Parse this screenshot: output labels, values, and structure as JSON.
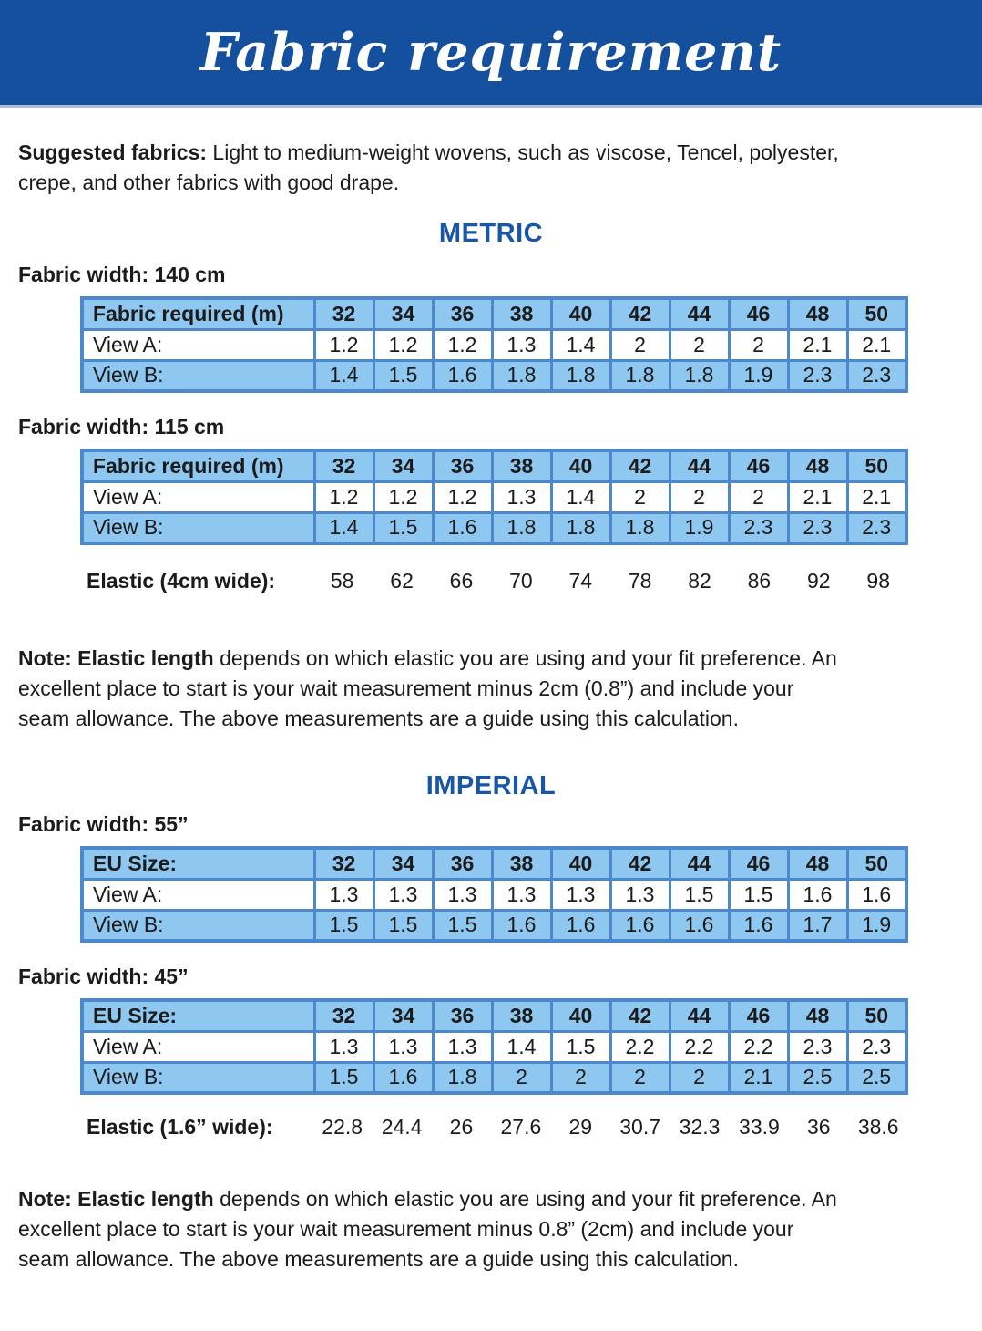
{
  "title": "Fabric requirement",
  "intro": {
    "lead": "Suggested fabrics:",
    "lines": [
      " Light to medium-weight wovens, such as viscose, Tencel, polyester,",
      "crepe, and other fabrics with good drape."
    ]
  },
  "metric": {
    "heading": "METRIC",
    "tables": [
      {
        "caption": "Fabric width: 140 cm",
        "header_label": "Fabric required (m)",
        "sizes": [
          "32",
          "34",
          "36",
          "38",
          "40",
          "42",
          "44",
          "46",
          "48",
          "50"
        ],
        "rows": [
          {
            "label": "View A:",
            "values": [
              "1.2",
              "1.2",
              "1.2",
              "1.3",
              "1.4",
              "2",
              "2",
              "2",
              "2.1",
              "2.1"
            ]
          },
          {
            "label": "View B:",
            "values": [
              "1.4",
              "1.5",
              "1.6",
              "1.8",
              "1.8",
              "1.8",
              "1.8",
              "1.9",
              "2.3",
              "2.3"
            ]
          }
        ]
      },
      {
        "caption": "Fabric width: 115 cm",
        "header_label": "Fabric required (m)",
        "sizes": [
          "32",
          "34",
          "36",
          "38",
          "40",
          "42",
          "44",
          "46",
          "48",
          "50"
        ],
        "rows": [
          {
            "label": "View A:",
            "values": [
              "1.2",
              "1.2",
              "1.2",
              "1.3",
              "1.4",
              "2",
              "2",
              "2",
              "2.1",
              "2.1"
            ]
          },
          {
            "label": "View B:",
            "values": [
              "1.4",
              "1.5",
              "1.6",
              "1.8",
              "1.8",
              "1.8",
              "1.9",
              "2.3",
              "2.3",
              "2.3"
            ]
          }
        ]
      }
    ],
    "elastic": {
      "label": "Elastic (4cm wide):",
      "values": [
        "58",
        "62",
        "66",
        "70",
        "74",
        "78",
        "82",
        "86",
        "92",
        "98"
      ]
    },
    "note": {
      "lead": "Note: Elastic length",
      "lines": [
        " depends on which elastic you are using and your fit preference. An",
        "excellent place to start is your wait measurement minus 2cm (0.8”) and include your",
        "seam allowance. The above measurements are a guide using this calculation."
      ]
    }
  },
  "imperial": {
    "heading": "IMPERIAL",
    "tables": [
      {
        "caption": "Fabric width: 55”",
        "header_label": "EU Size:",
        "sizes": [
          "32",
          "34",
          "36",
          "38",
          "40",
          "42",
          "44",
          "46",
          "48",
          "50"
        ],
        "rows": [
          {
            "label": "View A:",
            "values": [
              "1.3",
              "1.3",
              "1.3",
              "1.3",
              "1.3",
              "1.3",
              "1.5",
              "1.5",
              "1.6",
              "1.6"
            ]
          },
          {
            "label": "View B:",
            "values": [
              "1.5",
              "1.5",
              "1.5",
              "1.6",
              "1.6",
              "1.6",
              "1.6",
              "1.6",
              "1.7",
              "1.9"
            ]
          }
        ]
      },
      {
        "caption": "Fabric width: 45”",
        "header_label": "EU Size:",
        "sizes": [
          "32",
          "34",
          "36",
          "38",
          "40",
          "42",
          "44",
          "46",
          "48",
          "50"
        ],
        "rows": [
          {
            "label": "View A:",
            "values": [
              "1.3",
              "1.3",
              "1.3",
              "1.4",
              "1.5",
              "2.2",
              "2.2",
              "2.2",
              "2.3",
              "2.3"
            ]
          },
          {
            "label": "View B:",
            "values": [
              "1.5",
              "1.6",
              "1.8",
              "2",
              "2",
              "2",
              "2",
              "2.1",
              "2.5",
              "2.5"
            ]
          }
        ]
      }
    ],
    "elastic": {
      "label": "Elastic (1.6” wide):",
      "values": [
        "22.8",
        "24.4",
        "26",
        "27.6",
        "29",
        "30.7",
        "32.3",
        "33.9",
        "36",
        "38.6"
      ]
    },
    "note": {
      "lead": "Note: Elastic length",
      "lines": [
        " depends on which elastic you are using and your fit preference. An",
        "excellent place to start is your wait measurement minus 0.8” (2cm) and include your",
        "seam allowance. The above measurements are a guide using this calculation."
      ]
    }
  },
  "colors": {
    "banner_blue": "#15509E",
    "heading_blue": "#1856A7",
    "cell_blue": "#8EC7F0",
    "border_blue": "#4C88CB"
  }
}
